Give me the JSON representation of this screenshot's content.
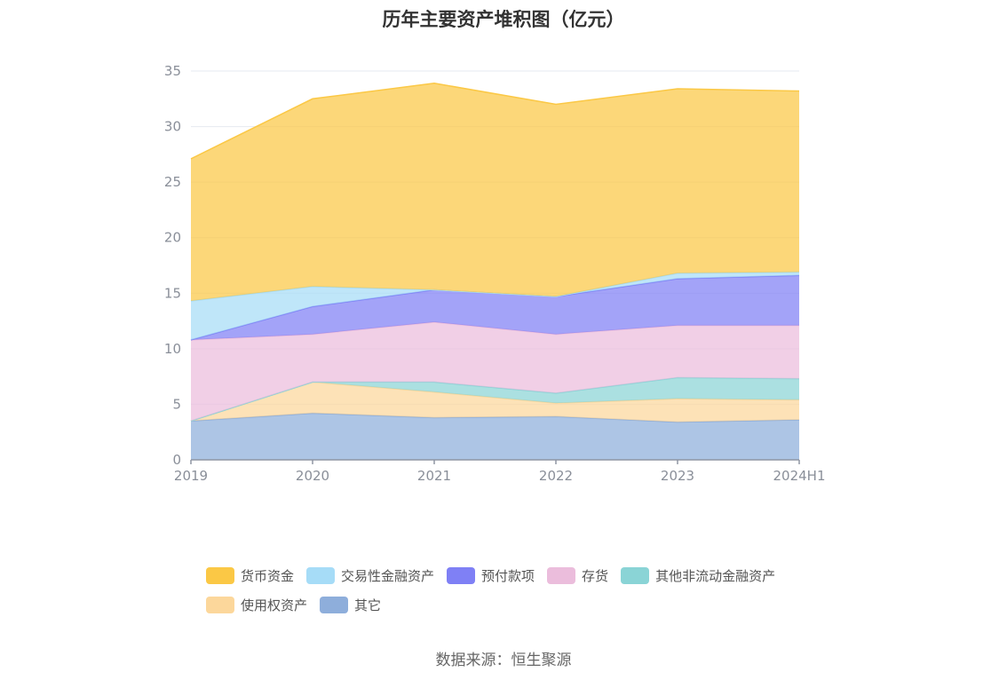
{
  "title": "历年主要资产堆积图（亿元）",
  "source": "数据来源：恒生聚源",
  "chart_data": {
    "type": "area",
    "stacked": true,
    "x": [
      "2019",
      "2020",
      "2021",
      "2022",
      "2023",
      "2024H1"
    ],
    "ylim": [
      0,
      35
    ],
    "yticks": [
      0,
      5,
      10,
      15,
      20,
      25,
      30,
      35
    ],
    "grid": true,
    "legend_position": "bottom",
    "series": [
      {
        "name": "其它",
        "color": "#8eaedb",
        "values": [
          3.5,
          4.2,
          3.8,
          3.9,
          3.4,
          3.6
        ]
      },
      {
        "name": "使用权资产",
        "color": "#fcd79b",
        "values": [
          0.0,
          2.8,
          2.3,
          1.2,
          2.1,
          1.8
        ]
      },
      {
        "name": "其他非流动金融资产",
        "color": "#8ad4d6",
        "values": [
          0.0,
          0.0,
          0.9,
          0.9,
          1.9,
          1.9
        ]
      },
      {
        "name": "存货",
        "color": "#ebbddc",
        "values": [
          7.3,
          4.3,
          5.4,
          5.3,
          4.7,
          4.8
        ]
      },
      {
        "name": "预付款项",
        "color": "#7f80f5",
        "values": [
          0.0,
          2.5,
          2.9,
          3.4,
          4.2,
          4.5
        ]
      },
      {
        "name": "交易性金融资产",
        "color": "#a6dcf7",
        "values": [
          3.5,
          1.8,
          0.0,
          0.0,
          0.5,
          0.3
        ]
      },
      {
        "name": "货币资金",
        "color": "#fbc845",
        "values": [
          12.8,
          16.9,
          18.6,
          17.3,
          16.6,
          16.3
        ]
      }
    ],
    "legend_rows": [
      [
        "货币资金",
        "交易性金融资产",
        "预付款项",
        "存货",
        "其他非流动金融资产"
      ],
      [
        "使用权资产",
        "其它"
      ]
    ]
  }
}
